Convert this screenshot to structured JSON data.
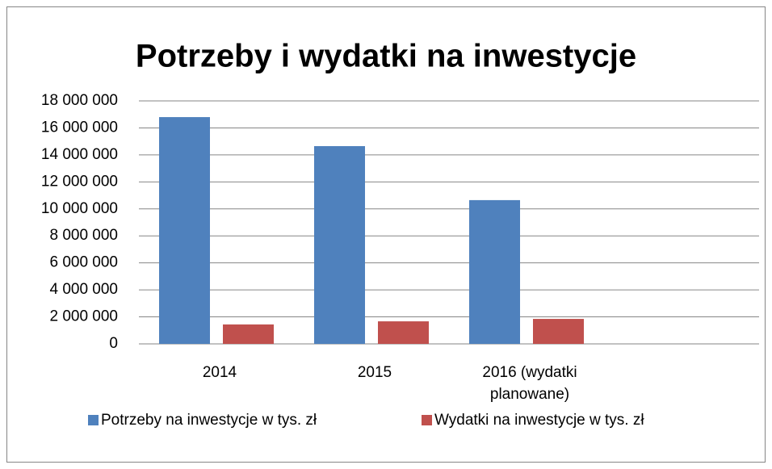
{
  "chart_data": {
    "type": "bar",
    "title": "Potrzeby i wydatki na inwestycje",
    "categories": [
      "2014",
      "2015",
      "2016 (wydatki planowane)",
      null
    ],
    "series": [
      {
        "name": "Potrzeby na inwestycje w tys. zł",
        "color": "#4f81bd",
        "values": [
          16800000,
          14650000,
          10650000,
          null
        ]
      },
      {
        "name": "Wydatki na inwestycje w tys. zł",
        "color": "#c0504d",
        "values": [
          1440000,
          1670000,
          1850000,
          null
        ]
      }
    ],
    "ylim": [
      0,
      18000000
    ],
    "yticks": [
      {
        "value": 0,
        "label": "0"
      },
      {
        "value": 2000000,
        "label": "2 000 000"
      },
      {
        "value": 4000000,
        "label": "4 000 000"
      },
      {
        "value": 6000000,
        "label": "6 000 000"
      },
      {
        "value": 8000000,
        "label": "8 000 000"
      },
      {
        "value": 10000000,
        "label": "10 000 000"
      },
      {
        "value": 12000000,
        "label": "12 000 000"
      },
      {
        "value": 14000000,
        "label": "14 000 000"
      },
      {
        "value": 16000000,
        "label": "16 000 000"
      },
      {
        "value": 18000000,
        "label": "18 000 000"
      }
    ],
    "grid": true,
    "legend": "bottom"
  }
}
